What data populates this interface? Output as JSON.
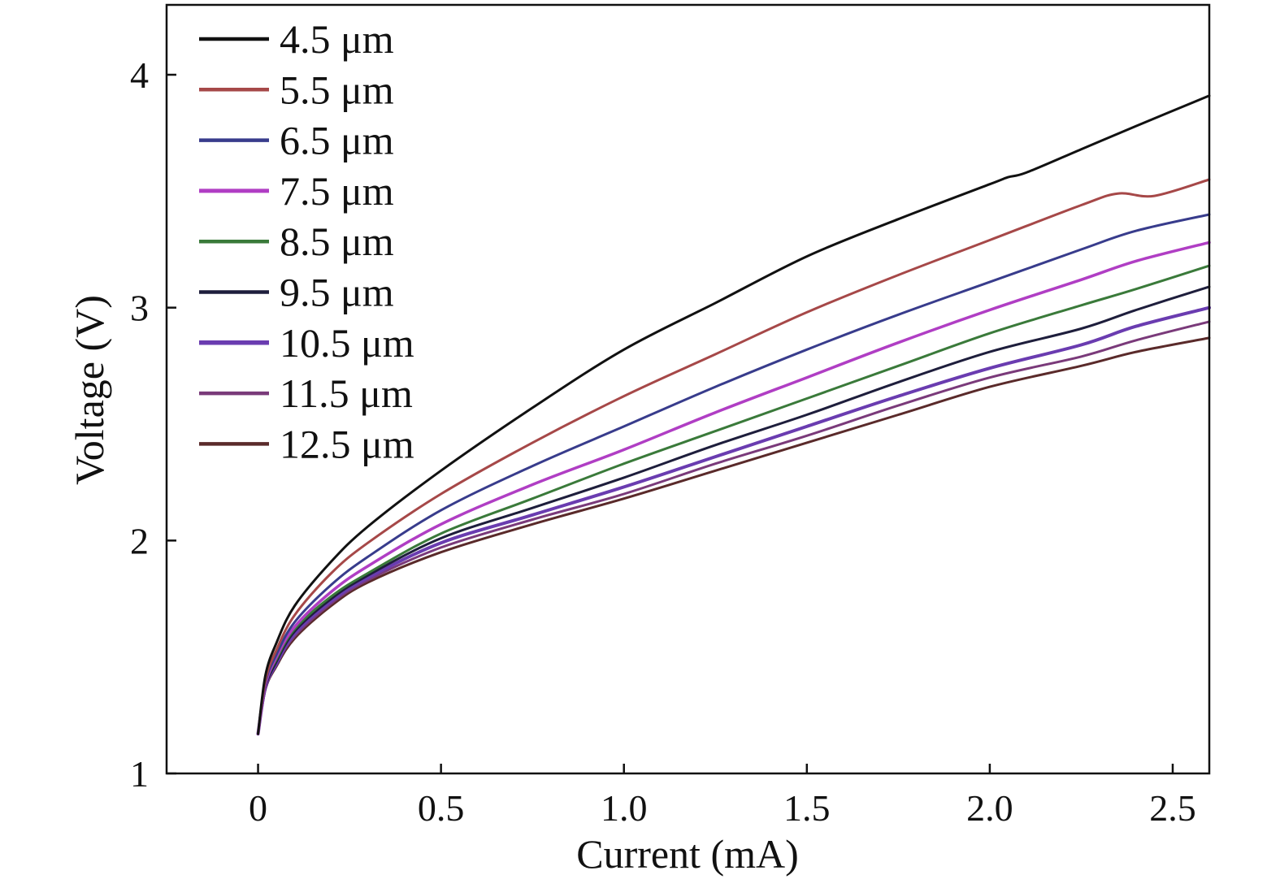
{
  "chart_data": {
    "type": "line",
    "title": "",
    "xlabel": "Current (mA)",
    "ylabel": "Voltage (V)",
    "xlim": [
      -0.25,
      2.6
    ],
    "ylim": [
      1.0,
      4.3
    ],
    "x_ticks": [
      0,
      0.5,
      1.0,
      1.5,
      2.0,
      2.5
    ],
    "x_tick_labels": [
      "0",
      "0.5",
      "1.0",
      "1.5",
      "2.0",
      "2.5"
    ],
    "y_ticks": [
      1,
      2,
      3,
      4
    ],
    "y_tick_labels": [
      "1",
      "2",
      "3",
      "4"
    ],
    "grid": false,
    "legend_position": "top-left",
    "series": [
      {
        "name": "4.5 μm",
        "color": "#111111",
        "width": 3.0,
        "x": [
          0,
          0.02,
          0.05,
          0.1,
          0.2,
          0.3,
          0.5,
          0.75,
          1.0,
          1.25,
          1.5,
          1.75,
          2.0,
          2.05,
          2.1,
          2.25,
          2.4,
          2.6
        ],
        "y": [
          1.17,
          1.42,
          1.56,
          1.72,
          1.91,
          2.06,
          2.3,
          2.57,
          2.82,
          3.02,
          3.22,
          3.38,
          3.53,
          3.56,
          3.58,
          3.68,
          3.78,
          3.91
        ]
      },
      {
        "name": "5.5 μm",
        "color": "#a64848",
        "width": 3.0,
        "x": [
          0,
          0.02,
          0.05,
          0.1,
          0.2,
          0.3,
          0.5,
          0.75,
          1.0,
          1.25,
          1.5,
          1.75,
          2.0,
          2.25,
          2.35,
          2.45,
          2.6
        ],
        "y": [
          1.17,
          1.4,
          1.53,
          1.68,
          1.86,
          1.99,
          2.2,
          2.42,
          2.62,
          2.8,
          2.98,
          3.14,
          3.29,
          3.44,
          3.49,
          3.48,
          3.55
        ]
      },
      {
        "name": "6.5 μm",
        "color": "#383c8c",
        "width": 3.0,
        "x": [
          0,
          0.02,
          0.05,
          0.1,
          0.2,
          0.3,
          0.5,
          0.75,
          1.0,
          1.25,
          1.5,
          1.75,
          2.0,
          2.25,
          2.4,
          2.6
        ],
        "y": [
          1.17,
          1.39,
          1.51,
          1.65,
          1.81,
          1.93,
          2.13,
          2.32,
          2.49,
          2.66,
          2.82,
          2.97,
          3.11,
          3.25,
          3.33,
          3.4
        ]
      },
      {
        "name": "7.5 μm",
        "color": "#b03ec4",
        "width": 3.5,
        "x": [
          0,
          0.02,
          0.05,
          0.1,
          0.2,
          0.3,
          0.5,
          0.75,
          1.0,
          1.25,
          1.5,
          1.75,
          2.0,
          2.25,
          2.4,
          2.6
        ],
        "y": [
          1.17,
          1.38,
          1.5,
          1.63,
          1.78,
          1.89,
          2.07,
          2.24,
          2.39,
          2.55,
          2.7,
          2.85,
          2.99,
          3.12,
          3.2,
          3.28
        ]
      },
      {
        "name": "8.5 μm",
        "color": "#3a7a3a",
        "width": 3.0,
        "x": [
          0,
          0.02,
          0.05,
          0.1,
          0.2,
          0.3,
          0.5,
          0.75,
          1.0,
          1.25,
          1.5,
          1.75,
          2.0,
          2.25,
          2.4,
          2.6
        ],
        "y": [
          1.17,
          1.38,
          1.49,
          1.62,
          1.76,
          1.86,
          2.03,
          2.18,
          2.33,
          2.47,
          2.61,
          2.75,
          2.89,
          3.01,
          3.08,
          3.18
        ]
      },
      {
        "name": "9.5 μm",
        "color": "#1e1e3c",
        "width": 3.0,
        "x": [
          0,
          0.02,
          0.05,
          0.1,
          0.2,
          0.3,
          0.5,
          0.75,
          1.0,
          1.25,
          1.5,
          1.75,
          2.0,
          2.25,
          2.4,
          2.6
        ],
        "y": [
          1.17,
          1.37,
          1.48,
          1.61,
          1.75,
          1.85,
          2.01,
          2.14,
          2.27,
          2.41,
          2.54,
          2.68,
          2.81,
          2.91,
          2.99,
          3.09
        ]
      },
      {
        "name": "10.5 μm",
        "color": "#6a3cb0",
        "width": 4.0,
        "x": [
          0,
          0.02,
          0.05,
          0.1,
          0.2,
          0.3,
          0.5,
          0.75,
          1.0,
          1.25,
          1.5,
          1.75,
          2.0,
          2.25,
          2.4,
          2.6
        ],
        "y": [
          1.17,
          1.37,
          1.47,
          1.6,
          1.74,
          1.84,
          1.99,
          2.11,
          2.23,
          2.36,
          2.49,
          2.62,
          2.74,
          2.84,
          2.92,
          3.0
        ]
      },
      {
        "name": "11.5 μm",
        "color": "#7a3a7a",
        "width": 3.0,
        "x": [
          0,
          0.02,
          0.05,
          0.1,
          0.2,
          0.3,
          0.5,
          0.75,
          1.0,
          1.25,
          1.5,
          1.75,
          2.0,
          2.25,
          2.4,
          2.6
        ],
        "y": [
          1.17,
          1.36,
          1.47,
          1.59,
          1.73,
          1.83,
          1.97,
          2.09,
          2.2,
          2.33,
          2.45,
          2.58,
          2.7,
          2.79,
          2.86,
          2.94
        ]
      },
      {
        "name": "12.5 μm",
        "color": "#5a2a2a",
        "width": 3.0,
        "x": [
          0,
          0.02,
          0.05,
          0.1,
          0.2,
          0.3,
          0.5,
          0.75,
          1.0,
          1.25,
          1.5,
          1.75,
          2.0,
          2.25,
          2.4,
          2.6
        ],
        "y": [
          1.17,
          1.36,
          1.46,
          1.58,
          1.72,
          1.82,
          1.95,
          2.07,
          2.18,
          2.3,
          2.42,
          2.54,
          2.66,
          2.75,
          2.81,
          2.87
        ]
      }
    ]
  }
}
